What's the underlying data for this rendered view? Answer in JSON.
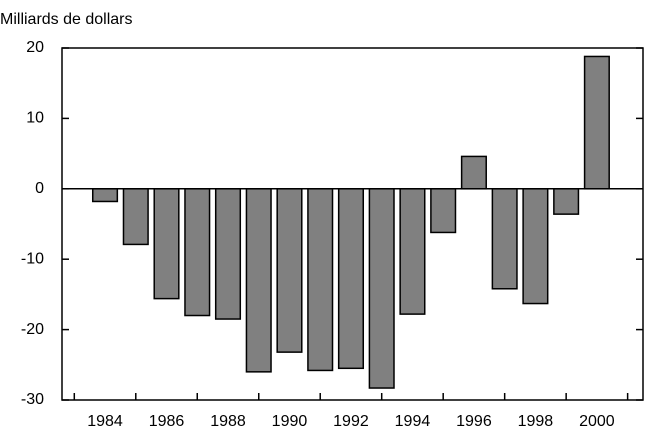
{
  "chart_data": {
    "type": "bar",
    "y_axis_label": "Milliards de dollars",
    "x": [
      1984,
      1985,
      1986,
      1987,
      1988,
      1989,
      1990,
      1991,
      1992,
      1993,
      1994,
      1995,
      1996,
      1997,
      1998,
      1999,
      2000
    ],
    "values": [
      -1.8,
      -7.9,
      -15.6,
      -18,
      -18.5,
      -26,
      -23.2,
      -25.8,
      -25.5,
      -28.3,
      -17.8,
      -6.2,
      4.6,
      -14.2,
      -16.3,
      -3.6,
      18.8
    ],
    "color": "#808080",
    "xlim": [
      1982.6,
      2001.5
    ],
    "xticks": [
      1984,
      1986,
      1988,
      1990,
      1992,
      1994,
      1996,
      1998,
      2000
    ],
    "xticks_minor": [
      1983,
      1985,
      1987,
      1989,
      1991,
      1993,
      1995,
      1997,
      1999,
      2001
    ],
    "ylim": [
      -30,
      20
    ],
    "yticks": [
      -30,
      -20,
      -10,
      0,
      10,
      20
    ],
    "grid": false
  }
}
